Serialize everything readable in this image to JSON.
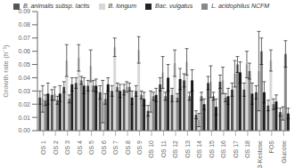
{
  "chart_data": {
    "type": "bar",
    "categories": [
      "OS 1",
      "OS 2",
      "OS 3",
      "OS 4",
      "OS 5",
      "OS 6",
      "OS 7",
      "OS 8",
      "OS 9",
      "OS 10",
      "OS 11",
      "OS 12",
      "OS 13",
      "OS 14",
      "OS 15",
      "OS 16",
      "OS 17",
      "OS 18",
      "3-Kestose",
      "FOS",
      "Glucose"
    ],
    "series": [
      {
        "name": "B. animalis subsp. lactis",
        "color": "#555555",
        "values": [
          0.025,
          0.027,
          0.033,
          0.036,
          0.034,
          0.029,
          0.03,
          0.031,
          0.03,
          0.015,
          0.035,
          0.027,
          0.038,
          0.012,
          0.036,
          0.037,
          0.031,
          0.031,
          0.029,
          0.019,
          0.014
        ],
        "errors": [
          0.005,
          0.004,
          0.004,
          0.004,
          0.004,
          0.005,
          0.004,
          0.004,
          0.004,
          0.004,
          0.005,
          0.005,
          0.005,
          0.003,
          0.005,
          0.005,
          0.005,
          0.005,
          0.005,
          0.004,
          0.003
        ]
      },
      {
        "name": "B. longum",
        "color": "#d8d8d8",
        "values": [
          0.024,
          0.028,
          0.053,
          0.055,
          0.049,
          0.022,
          0.063,
          0.033,
          0.061,
          0.022,
          0.044,
          0.051,
          0.052,
          0.008,
          0.037,
          0.038,
          0.043,
          0.05,
          0.045,
          0.053,
          0.013
        ],
        "errors": [
          0.01,
          0.005,
          0.012,
          0.01,
          0.012,
          0.016,
          0.007,
          0.004,
          0.01,
          0.008,
          0.012,
          0.01,
          0.01,
          0.005,
          0.012,
          0.01,
          0.01,
          0.01,
          0.03,
          0.008,
          0.005
        ]
      },
      {
        "name": "L. acidophilus NCFM",
        "color": "#888888",
        "values": [
          0.023,
          0.023,
          0.024,
          0.038,
          0.034,
          0.024,
          0.033,
          0.033,
          0.027,
          0.026,
          0.026,
          0.025,
          0.026,
          0.026,
          0.026,
          0.025,
          0.05,
          0.045,
          0.06,
          0.02,
          0.058
        ],
        "errors": [
          0.004,
          0.003,
          0.003,
          0.003,
          0.004,
          0.004,
          0.003,
          0.003,
          0.003,
          0.003,
          0.003,
          0.003,
          0.003,
          0.003,
          0.003,
          0.003,
          0.006,
          0.006,
          0.01,
          0.004,
          0.01
        ]
      },
      {
        "name": "Bac. vulgatus",
        "color": "#222222",
        "values": [
          0.028,
          0.028,
          0.035,
          0.034,
          0.034,
          0.035,
          0.03,
          0.025,
          0.024,
          0.027,
          0.04,
          0.039,
          0.038,
          0.02,
          0.018,
          0.026,
          0.044,
          0.028,
          0.029,
          0.022,
          0.013
        ],
        "errors": [
          0.008,
          0.006,
          0.005,
          0.006,
          0.005,
          0.005,
          0.005,
          0.005,
          0.005,
          0.005,
          0.01,
          0.008,
          0.008,
          0.004,
          0.006,
          0.006,
          0.008,
          0.008,
          0.008,
          0.005,
          0.004
        ]
      }
    ],
    "ylabel": "Growth rate (h⁻¹)",
    "ylim": [
      0,
      0.09
    ],
    "yticks": [
      {
        "value": 0,
        "label": "0.00"
      },
      {
        "value": 0.01,
        "label": "0.01"
      },
      {
        "value": 0.02,
        "label": "0.02"
      },
      {
        "value": 0.03,
        "label": "0.03"
      },
      {
        "value": 0.04,
        "label": "0.04"
      },
      {
        "value": 0.05,
        "label": "0.05"
      },
      {
        "value": 0.06,
        "label": "0.06"
      },
      {
        "value": 0.07,
        "label": "0.07"
      },
      {
        "value": 0.08,
        "label": "0.08"
      },
      {
        "value": 0.09,
        "label": "0.09"
      }
    ],
    "grid": false,
    "legend": "top"
  }
}
